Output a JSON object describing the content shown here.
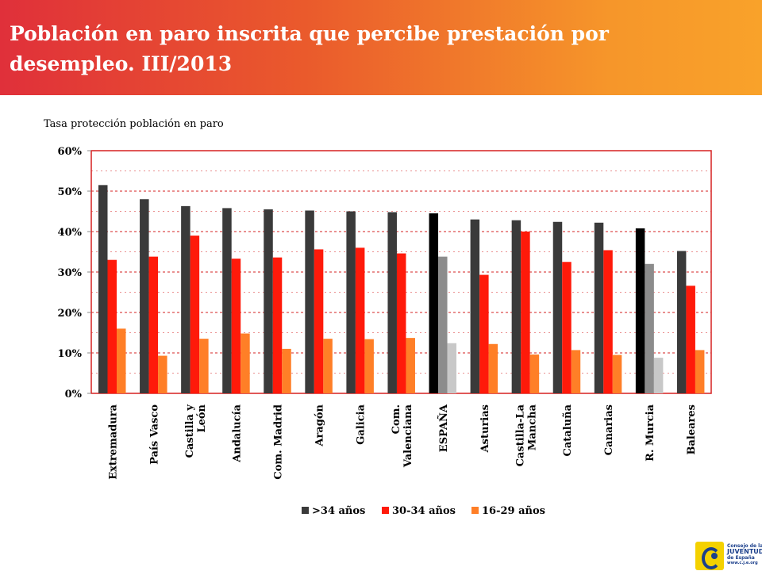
{
  "header": {
    "title": "Población en paro inscrita que percibe prestación por desempleo. III/2013"
  },
  "colors": {
    "series1": "#3a3a3a",
    "series2": "#ff1a0a",
    "series3": "#ff7f27",
    "highlight1": "#000000",
    "highlight2": "#8c8c8c",
    "highlight3": "#c8c8c8",
    "grid": "#d62020"
  },
  "chart_data": {
    "type": "bar",
    "title": "Tasa protección población en paro",
    "xlabel": "",
    "ylabel": "",
    "ylim": [
      0,
      0.6
    ],
    "yticks": [
      0,
      0.1,
      0.2,
      0.3,
      0.4,
      0.5,
      0.6
    ],
    "ytick_labels": [
      "0%",
      "10%",
      "20%",
      "30%",
      "40%",
      "50%",
      "60%"
    ],
    "grid": true,
    "legend_position": "bottom",
    "categories": [
      "Extremadura",
      "País Vasco",
      "Castilla y León",
      "Andalucía",
      "Com. Madrid",
      "Aragón",
      "Galicia",
      "Com. Valenciana",
      "ESPAÑA",
      "Asturias",
      "Castilla-La Mancha",
      "Cataluña",
      "Canarias",
      "R. Murcia",
      "Baleares"
    ],
    "category_lines": [
      [
        "Extremadura"
      ],
      [
        "País Vasco"
      ],
      [
        "Castilla y",
        "León"
      ],
      [
        "Andalucía"
      ],
      [
        "Com. Madrid"
      ],
      [
        "Aragón"
      ],
      [
        "Galicia"
      ],
      [
        "Com.",
        "Valenciana"
      ],
      [
        "ESPAÑA"
      ],
      [
        "Asturias"
      ],
      [
        "Castilla-La",
        "Mancha"
      ],
      [
        "Cataluña"
      ],
      [
        "Canarias"
      ],
      [
        "R. Murcia"
      ],
      [
        "Baleares"
      ]
    ],
    "highlighted_categories": [
      "ESPAÑA",
      "R. Murcia"
    ],
    "series": [
      {
        "name": ">34 años",
        "values": [
          0.515,
          0.48,
          0.463,
          0.458,
          0.455,
          0.452,
          0.45,
          0.448,
          0.445,
          0.43,
          0.428,
          0.424,
          0.422,
          0.408,
          0.352
        ]
      },
      {
        "name": "30-34 años",
        "values": [
          0.33,
          0.338,
          0.39,
          0.333,
          0.336,
          0.356,
          0.36,
          0.346,
          0.338,
          0.293,
          0.4,
          0.325,
          0.354,
          0.32,
          0.266
        ]
      },
      {
        "name": "16-29 años",
        "values": [
          0.16,
          0.093,
          0.135,
          0.148,
          0.11,
          0.135,
          0.134,
          0.137,
          0.124,
          0.122,
          0.096,
          0.107,
          0.095,
          0.088,
          0.107
        ]
      }
    ]
  },
  "logo": {
    "line1": "Consejo de la",
    "line2": "JUVENTUD",
    "line3": "de España",
    "line4": "www.c.j.e.org"
  }
}
